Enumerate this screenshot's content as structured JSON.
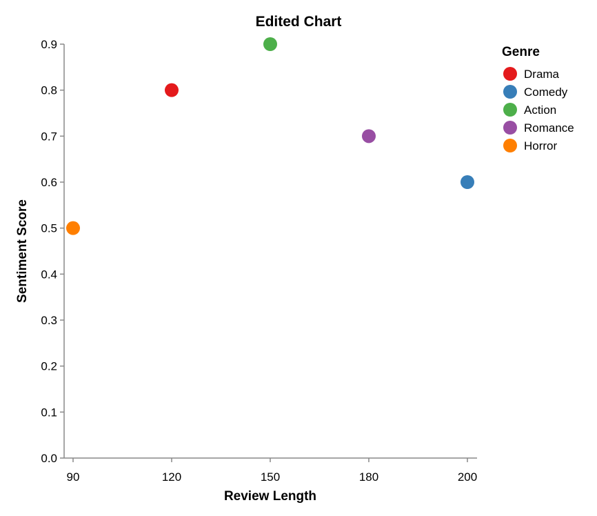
{
  "chart_data": {
    "type": "scatter",
    "title": "Edited Chart",
    "xlabel": "Review Length",
    "ylabel": "Sentiment Score",
    "x_ticks": [
      "90",
      "120",
      "150",
      "180",
      "200"
    ],
    "y_ticks": [
      "0.0",
      "0.1",
      "0.2",
      "0.3",
      "0.4",
      "0.5",
      "0.6",
      "0.7",
      "0.8",
      "0.9"
    ],
    "ylim": [
      0,
      0.9
    ],
    "grid": false,
    "legend": {
      "title": "Genre",
      "placement": "right"
    },
    "series": [
      {
        "name": "Drama",
        "color": "#e41a1c",
        "x": "120",
        "y": 0.8
      },
      {
        "name": "Comedy",
        "color": "#377eb8",
        "x": "200",
        "y": 0.6
      },
      {
        "name": "Action",
        "color": "#4daf4a",
        "x": "150",
        "y": 0.9
      },
      {
        "name": "Romance",
        "color": "#984ea3",
        "x": "180",
        "y": 0.7
      },
      {
        "name": "Horror",
        "color": "#ff7f00",
        "x": "90",
        "y": 0.5
      }
    ]
  }
}
